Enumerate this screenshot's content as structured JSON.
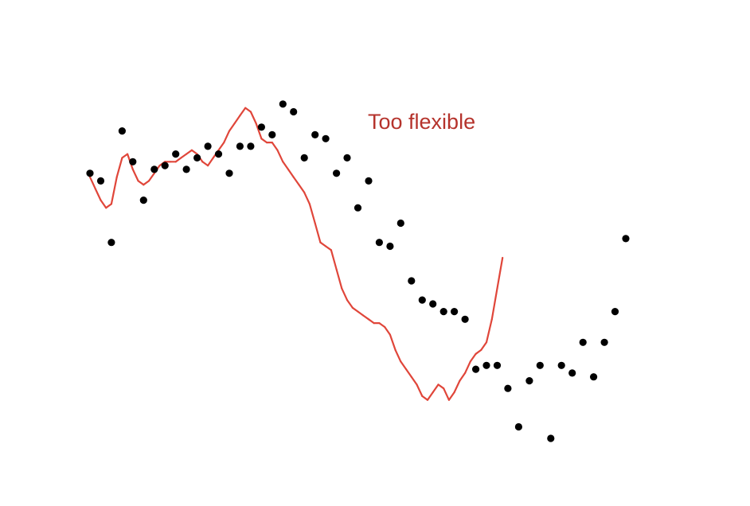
{
  "chart_data": {
    "type": "scatter",
    "title": "",
    "xlabel": "",
    "ylabel": "",
    "xlim": [
      0,
      100
    ],
    "ylim": [
      0,
      100
    ],
    "grid": false,
    "axes_visible": false,
    "annotation": {
      "text": "Too flexible",
      "color": "#b5332c"
    },
    "colors": {
      "points": "#000000",
      "fit_line": "#e0463a"
    },
    "series": [
      {
        "kind": "points",
        "points": [
          [
            0,
            75
          ],
          [
            2,
            73
          ],
          [
            4,
            57
          ],
          [
            6,
            86
          ],
          [
            8,
            78
          ],
          [
            10,
            68
          ],
          [
            12,
            76
          ],
          [
            14,
            77
          ],
          [
            16,
            80
          ],
          [
            18,
            76
          ],
          [
            20,
            79
          ],
          [
            22,
            82
          ],
          [
            24,
            80
          ],
          [
            26,
            75
          ],
          [
            28,
            82
          ],
          [
            30,
            82
          ],
          [
            32,
            87
          ],
          [
            34,
            85
          ],
          [
            36,
            93
          ],
          [
            38,
            91
          ],
          [
            40,
            79
          ],
          [
            42,
            85
          ],
          [
            44,
            84
          ],
          [
            46,
            75
          ],
          [
            48,
            79
          ],
          [
            50,
            66
          ],
          [
            52,
            73
          ],
          [
            54,
            57
          ],
          [
            56,
            56
          ],
          [
            58,
            62
          ],
          [
            60,
            47
          ],
          [
            62,
            42
          ],
          [
            64,
            41
          ],
          [
            66,
            39
          ],
          [
            68,
            39
          ],
          [
            70,
            37
          ],
          [
            72,
            24
          ],
          [
            74,
            25
          ],
          [
            76,
            25
          ],
          [
            78,
            19
          ],
          [
            80,
            9
          ],
          [
            82,
            21
          ],
          [
            84,
            25
          ],
          [
            86,
            6
          ],
          [
            88,
            25
          ],
          [
            90,
            23
          ],
          [
            92,
            31
          ],
          [
            94,
            22
          ],
          [
            96,
            31
          ],
          [
            98,
            39
          ],
          [
            100,
            58
          ]
        ]
      },
      {
        "kind": "fit_line",
        "points": [
          [
            0,
            74
          ],
          [
            1,
            71
          ],
          [
            2,
            68
          ],
          [
            3,
            66
          ],
          [
            4,
            67
          ],
          [
            5,
            74
          ],
          [
            6,
            79
          ],
          [
            7,
            80
          ],
          [
            8,
            76
          ],
          [
            9,
            73
          ],
          [
            10,
            72
          ],
          [
            11,
            73
          ],
          [
            12,
            75
          ],
          [
            13,
            77
          ],
          [
            14,
            78
          ],
          [
            15,
            78
          ],
          [
            16,
            78
          ],
          [
            17,
            79
          ],
          [
            18,
            80
          ],
          [
            19,
            81
          ],
          [
            20,
            80
          ],
          [
            21,
            78
          ],
          [
            22,
            77
          ],
          [
            23,
            79
          ],
          [
            24,
            81
          ],
          [
            25,
            83
          ],
          [
            26,
            86
          ],
          [
            27,
            88
          ],
          [
            28,
            90
          ],
          [
            29,
            92
          ],
          [
            30,
            91
          ],
          [
            31,
            88
          ],
          [
            32,
            84
          ],
          [
            33,
            83
          ],
          [
            34,
            83
          ],
          [
            35,
            81
          ],
          [
            36,
            78
          ],
          [
            37,
            76
          ],
          [
            38,
            74
          ],
          [
            39,
            72
          ],
          [
            40,
            70
          ],
          [
            41,
            67
          ],
          [
            42,
            62
          ],
          [
            43,
            57
          ],
          [
            44,
            56
          ],
          [
            45,
            55
          ],
          [
            46,
            50
          ],
          [
            47,
            45
          ],
          [
            48,
            42
          ],
          [
            49,
            40
          ],
          [
            50,
            39
          ],
          [
            51,
            38
          ],
          [
            52,
            37
          ],
          [
            53,
            36
          ],
          [
            54,
            36
          ],
          [
            55,
            35
          ],
          [
            56,
            33
          ],
          [
            57,
            29
          ],
          [
            58,
            26
          ],
          [
            59,
            24
          ],
          [
            60,
            22
          ],
          [
            61,
            20
          ],
          [
            62,
            17
          ],
          [
            63,
            16
          ],
          [
            64,
            18
          ],
          [
            65,
            20
          ],
          [
            66,
            19
          ],
          [
            67,
            16
          ],
          [
            68,
            18
          ],
          [
            69,
            21
          ],
          [
            70,
            23
          ],
          [
            71,
            26
          ],
          [
            72,
            28
          ],
          [
            73,
            29
          ],
          [
            74,
            31
          ],
          [
            75,
            37
          ],
          [
            76,
            45
          ],
          [
            77,
            53
          ]
        ]
      }
    ]
  }
}
